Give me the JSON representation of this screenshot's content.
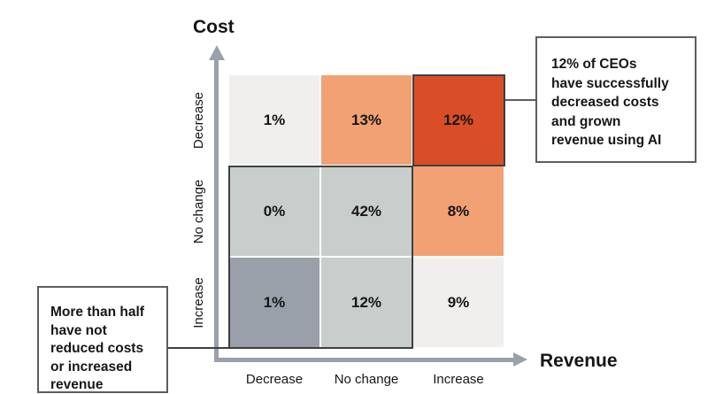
{
  "chart_data": {
    "type": "heatmap",
    "x_axis": {
      "label": "Revenue",
      "categories": [
        "Decrease",
        "No change",
        "Increase"
      ]
    },
    "y_axis": {
      "label": "Cost",
      "categories": [
        "Decrease",
        "No change",
        "Increase"
      ]
    },
    "values": [
      [
        1,
        13,
        12
      ],
      [
        0,
        42,
        8
      ],
      [
        1,
        12,
        9
      ]
    ],
    "cell_labels": [
      [
        "1%",
        "13%",
        "12%"
      ],
      [
        "0%",
        "42%",
        "8%"
      ],
      [
        "1%",
        "12%",
        "9%"
      ]
    ],
    "cell_colors": [
      [
        "#F0EFED",
        "#F1A173",
        "#D94E27"
      ],
      [
        "#C8CECC",
        "#C8CECC",
        "#F1A173"
      ],
      [
        "#99A0A9",
        "#C8CECC",
        "#F0EFED"
      ]
    ],
    "highlight_outlines": [
      "single cell outlined: Cost Decrease x Revenue Increase (12%)",
      "2x2 block outlined: Cost {No change, Increase} x Revenue {Decrease, No change} (0%, 42%, 1%, 12%)"
    ]
  },
  "annotations": {
    "right_callout": {
      "text": "12% of CEOs have successfully decreased costs and grown revenue using AI",
      "lines": [
        "12% of CEOs",
        "have successfully",
        "decreased costs",
        "and grown",
        "revenue using AI"
      ]
    },
    "left_callout": {
      "text": "More than half have not reduced costs or increased revenue",
      "lines": [
        "More than half",
        "have not",
        "reduced costs",
        "or increased",
        "revenue"
      ]
    }
  },
  "colors": {
    "axis_arrow": "#9BA1AB",
    "highlight_border": "#3C4043",
    "callout_border": "#5B5E61",
    "background": "#FFFFFF"
  }
}
